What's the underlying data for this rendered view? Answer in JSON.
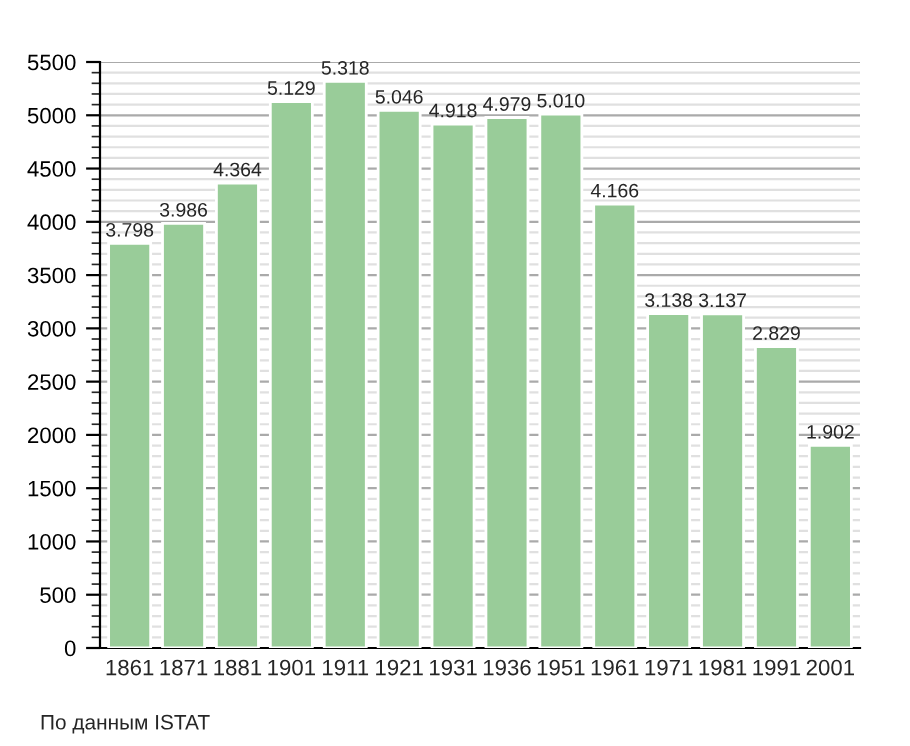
{
  "chart_data": {
    "type": "bar",
    "categories": [
      "1861",
      "1871",
      "1881",
      "1901",
      "1911",
      "1921",
      "1931",
      "1936",
      "1951",
      "1961",
      "1971",
      "1981",
      "1991",
      "2001"
    ],
    "values": [
      3798,
      3986,
      4364,
      5129,
      5318,
      5046,
      4918,
      4979,
      5010,
      4166,
      3138,
      3137,
      2829,
      1902
    ],
    "value_labels": [
      "3.798",
      "3.986",
      "4.364",
      "5.129",
      "5.318",
      "5.046",
      "4.918",
      "4.979",
      "5.010",
      "4.166",
      "3.138",
      "3.137",
      "2.829",
      "1.902"
    ],
    "color": "#99cc99",
    "ylim": [
      0,
      5500
    ],
    "yticks": [
      0,
      500,
      1000,
      1500,
      2000,
      2500,
      3000,
      3500,
      4000,
      4500,
      5000,
      5500
    ],
    "grid": "y",
    "annotations": [
      "По данным ISTAT"
    ]
  }
}
